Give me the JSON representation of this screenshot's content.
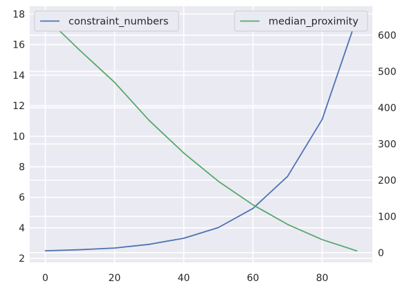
{
  "chart_data": {
    "type": "line",
    "x": [
      0,
      10,
      20,
      30,
      40,
      50,
      60,
      70,
      80,
      90
    ],
    "series": [
      {
        "name": "constraint_numbers",
        "axis": "left",
        "color": "#4c72b0",
        "values": [
          2.5,
          2.57,
          2.68,
          2.92,
          3.32,
          4.02,
          5.27,
          7.37,
          11.1,
          17.75
        ]
      },
      {
        "name": "median_proximity",
        "axis": "right",
        "color": "#55a868",
        "values": [
          650,
          558,
          470,
          365,
          275,
          197,
          132,
          78,
          36,
          5
        ]
      }
    ],
    "x_ticks": [
      0,
      20,
      40,
      60,
      80
    ],
    "y_left_ticks": [
      2,
      4,
      6,
      8,
      10,
      12,
      14,
      16,
      18
    ],
    "y_right_ticks": [
      0,
      100,
      200,
      300,
      400,
      500,
      600
    ],
    "xlim": [
      -4.5,
      94.5
    ],
    "ylim_left": [
      1.735,
      18.515
    ],
    "ylim_right": [
      -27,
      680
    ],
    "grid": true,
    "legend_left": "upper-left",
    "legend_right": "upper-right",
    "background": "#eaeaf2"
  }
}
